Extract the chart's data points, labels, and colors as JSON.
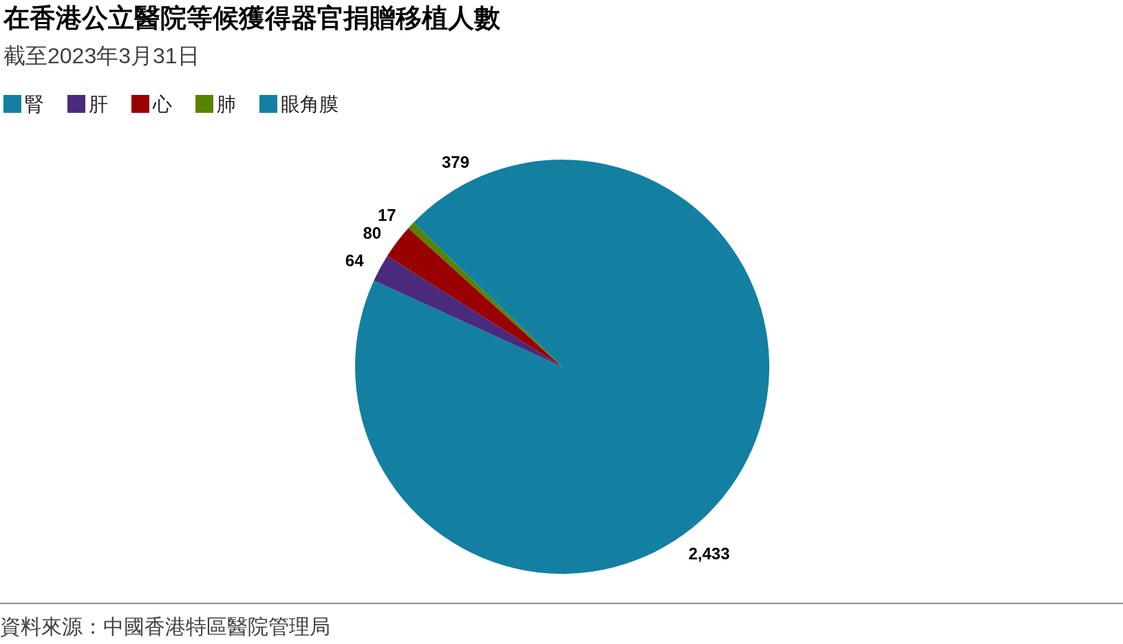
{
  "chart_data": {
    "type": "pie",
    "title": "在香港公立醫院等候獲得器官捐贈移植人數",
    "subtitle": "截至2023年3月31日",
    "categories": [
      "腎",
      "肝",
      "心",
      "肺",
      "眼角膜"
    ],
    "values": [
      2433,
      64,
      80,
      17,
      379
    ],
    "colors": [
      "#1380a1",
      "#4b2a7b",
      "#990000",
      "#588300",
      "#1380a1"
    ],
    "value_labels": [
      "2,433",
      "64",
      "80",
      "17",
      "379"
    ],
    "legend": "top left",
    "annotations": [
      "資料來源：中國香港特區醫院管理局"
    ]
  }
}
